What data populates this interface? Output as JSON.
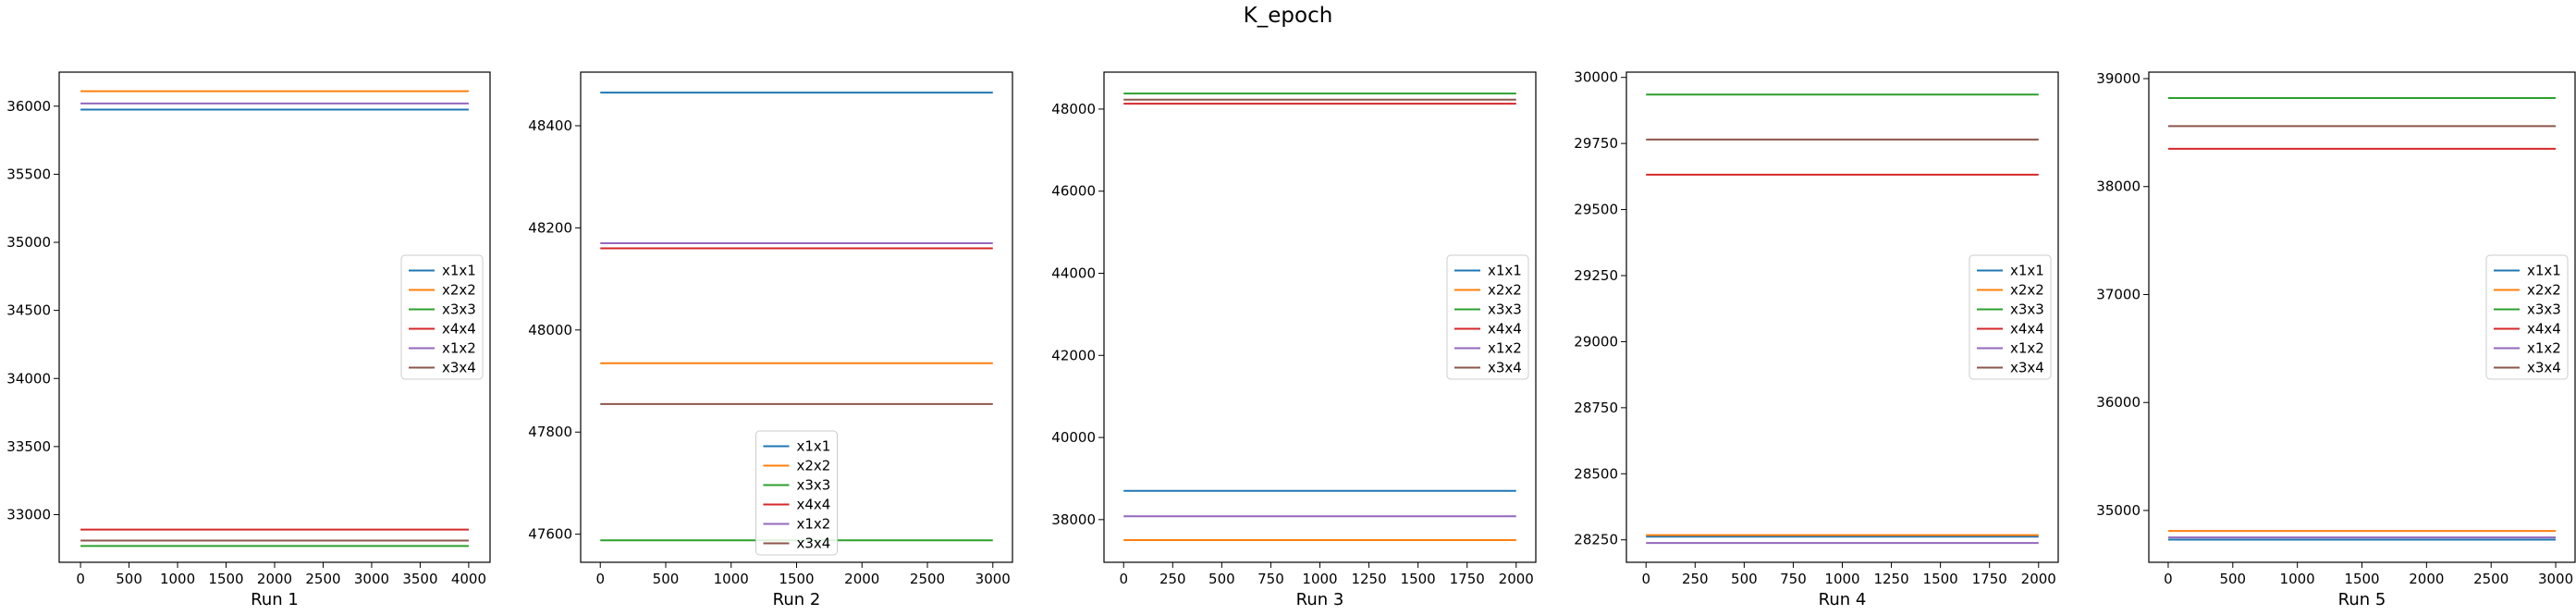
{
  "suptitle": "K_epoch",
  "colors": {
    "x1x1": "#1f77b4",
    "x2x2": "#ff7f0e",
    "x3x3": "#2ca02c",
    "x4x4": "#d62728",
    "x1x2": "#9467bd",
    "x3x4": "#8c564b"
  },
  "chart_data": [
    {
      "type": "line",
      "xlabel": "Run 1",
      "ylabel": "",
      "xlim": [
        -220,
        4220
      ],
      "ylim": [
        32650,
        36250
      ],
      "xticks": [
        0,
        500,
        1000,
        1500,
        2000,
        2500,
        3000,
        3500,
        4000
      ],
      "yticks": [
        33000,
        33500,
        34000,
        34500,
        35000,
        35500,
        36000
      ],
      "x": [
        0,
        4000
      ],
      "legend_loc": "center right",
      "series": [
        {
          "name": "x1x1",
          "values": [
            35975,
            35975
          ]
        },
        {
          "name": "x2x2",
          "values": [
            36110,
            36110
          ]
        },
        {
          "name": "x3x3",
          "values": [
            32770,
            32770
          ]
        },
        {
          "name": "x4x4",
          "values": [
            32890,
            32890
          ]
        },
        {
          "name": "x1x2",
          "values": [
            36020,
            36020
          ]
        },
        {
          "name": "x3x4",
          "values": [
            32810,
            32810
          ]
        }
      ]
    },
    {
      "type": "line",
      "xlabel": "Run 2",
      "ylabel": "",
      "xlim": [
        -150,
        3150
      ],
      "ylim": [
        47545,
        48505
      ],
      "xticks": [
        0,
        500,
        1000,
        1500,
        2000,
        2500,
        3000
      ],
      "yticks": [
        47600,
        47800,
        48000,
        48200,
        48400
      ],
      "x": [
        0,
        3000
      ],
      "legend_loc": "lower center",
      "series": [
        {
          "name": "x1x1",
          "values": [
            48465,
            48465
          ]
        },
        {
          "name": "x2x2",
          "values": [
            47935,
            47935
          ]
        },
        {
          "name": "x3x3",
          "values": [
            47588,
            47588
          ]
        },
        {
          "name": "x4x4",
          "values": [
            48160,
            48160
          ]
        },
        {
          "name": "x1x2",
          "values": [
            48170,
            48170
          ]
        },
        {
          "name": "x3x4",
          "values": [
            47855,
            47855
          ]
        }
      ]
    },
    {
      "type": "line",
      "xlabel": "Run 3",
      "ylabel": "",
      "xlim": [
        -100,
        2100
      ],
      "ylim": [
        36960,
        48900
      ],
      "xticks": [
        0,
        250,
        500,
        750,
        1000,
        1250,
        1500,
        1750,
        2000
      ],
      "yticks": [
        38000,
        40000,
        42000,
        44000,
        46000,
        48000
      ],
      "x": [
        0,
        2000
      ],
      "legend_loc": "center right",
      "series": [
        {
          "name": "x1x1",
          "values": [
            38700,
            38700
          ]
        },
        {
          "name": "x2x2",
          "values": [
            37500,
            37500
          ]
        },
        {
          "name": "x3x3",
          "values": [
            48380,
            48380
          ]
        },
        {
          "name": "x4x4",
          "values": [
            48130,
            48130
          ]
        },
        {
          "name": "x1x2",
          "values": [
            38080,
            38080
          ]
        },
        {
          "name": "x3x4",
          "values": [
            48230,
            48230
          ]
        }
      ]
    },
    {
      "type": "line",
      "xlabel": "Run 4",
      "ylabel": "",
      "xlim": [
        -100,
        2100
      ],
      "ylim": [
        28165,
        30020
      ],
      "xticks": [
        0,
        250,
        500,
        750,
        1000,
        1250,
        1500,
        1750,
        2000
      ],
      "yticks": [
        28250,
        28500,
        28750,
        29000,
        29250,
        29500,
        29750,
        30000
      ],
      "x": [
        0,
        2000
      ],
      "legend_loc": "center right",
      "series": [
        {
          "name": "x1x1",
          "values": [
            28262,
            28262
          ]
        },
        {
          "name": "x2x2",
          "values": [
            28268,
            28268
          ]
        },
        {
          "name": "x3x3",
          "values": [
            29935,
            29935
          ]
        },
        {
          "name": "x4x4",
          "values": [
            29632,
            29632
          ]
        },
        {
          "name": "x1x2",
          "values": [
            28238,
            28238
          ]
        },
        {
          "name": "x3x4",
          "values": [
            29765,
            29765
          ]
        }
      ]
    },
    {
      "type": "line",
      "xlabel": "Run 5",
      "ylabel": "",
      "xlim": [
        -150,
        3150
      ],
      "ylim": [
        34520,
        39060
      ],
      "xticks": [
        0,
        500,
        1000,
        1500,
        2000,
        2500,
        3000
      ],
      "yticks": [
        35000,
        36000,
        37000,
        38000,
        39000
      ],
      "x": [
        0,
        3000
      ],
      "legend_loc": "center right",
      "series": [
        {
          "name": "x1x1",
          "values": [
            34730,
            34730
          ]
        },
        {
          "name": "x2x2",
          "values": [
            34810,
            34810
          ]
        },
        {
          "name": "x3x3",
          "values": [
            38820,
            38820
          ]
        },
        {
          "name": "x4x4",
          "values": [
            38350,
            38350
          ]
        },
        {
          "name": "x1x2",
          "values": [
            34750,
            34750
          ]
        },
        {
          "name": "x3x4",
          "values": [
            38560,
            38560
          ]
        }
      ]
    }
  ]
}
